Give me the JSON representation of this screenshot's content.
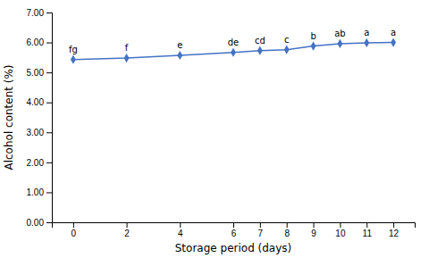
{
  "chart_data": {
    "type": "line",
    "x": [
      0,
      2,
      4,
      6,
      7,
      8,
      9,
      10,
      11,
      12
    ],
    "values": [
      5.43,
      5.48,
      5.57,
      5.67,
      5.73,
      5.76,
      5.88,
      5.96,
      5.99,
      6.0
    ],
    "annotations": [
      "fg",
      "f",
      "e",
      "de",
      "cd",
      "c",
      "b",
      "ab",
      "a",
      "a"
    ],
    "xlabel": "Storage period (days)",
    "ylabel": "Alcohol content (%)",
    "xlim": [
      -0.8,
      12.8
    ],
    "ylim": [
      0.0,
      7.0
    ],
    "xticks": [
      0,
      2,
      4,
      6,
      7,
      8,
      9,
      10,
      11,
      12
    ],
    "yticks": [
      {
        "value": 0.0,
        "label": "0.00"
      },
      {
        "value": 1.0,
        "label": "1.00"
      },
      {
        "value": 2.0,
        "label": "2.00"
      },
      {
        "value": 3.0,
        "label": "3.00"
      },
      {
        "value": 4.0,
        "label": "4.00"
      },
      {
        "value": 5.0,
        "label": "5.00"
      },
      {
        "value": 6.0,
        "label": "6.00"
      },
      {
        "value": 7.0,
        "label": "7.00"
      }
    ],
    "color": "#4472C4",
    "marker": "diamond",
    "grid": false
  }
}
